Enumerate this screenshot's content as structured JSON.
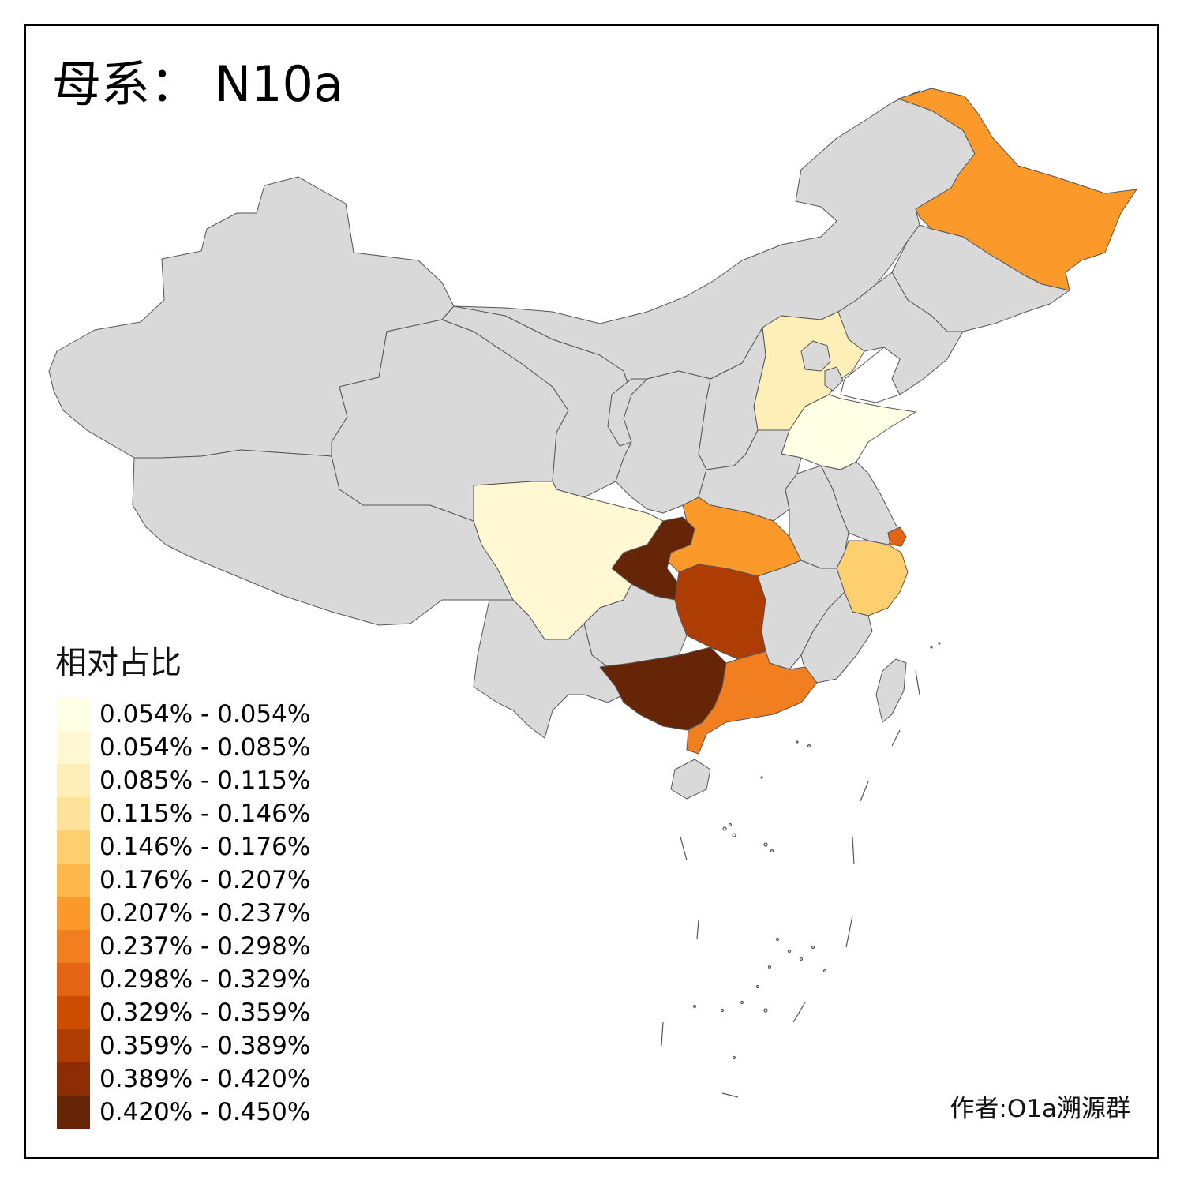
{
  "title": "母系： N10a",
  "legend": {
    "title": "相对占比",
    "items": [
      {
        "label": "0.054% - 0.054%",
        "color": "#FFFFE5"
      },
      {
        "label": "0.054% - 0.085%",
        "color": "#FFF8D2"
      },
      {
        "label": "0.085% - 0.115%",
        "color": "#FEEEB8"
      },
      {
        "label": "0.115% - 0.146%",
        "color": "#FEE29A"
      },
      {
        "label": "0.146% - 0.176%",
        "color": "#FECF6E"
      },
      {
        "label": "0.176% - 0.207%",
        "color": "#FEB74A"
      },
      {
        "label": "0.207% - 0.237%",
        "color": "#FB9A2B"
      },
      {
        "label": "0.237% - 0.298%",
        "color": "#F17E1F"
      },
      {
        "label": "0.298% - 0.329%",
        "color": "#E36414"
      },
      {
        "label": "0.329% - 0.359%",
        "color": "#CC4C02"
      },
      {
        "label": "0.359% - 0.389%",
        "color": "#AE3D04"
      },
      {
        "label": "0.389% - 0.420%",
        "color": "#8C2D04"
      },
      {
        "label": "0.420% - 0.450%",
        "color": "#662506"
      }
    ]
  },
  "author": "作者:O1a溯源群",
  "colors": {
    "no_data": "#D9D9D9",
    "border": "#555555",
    "frame": "#000000"
  }
}
